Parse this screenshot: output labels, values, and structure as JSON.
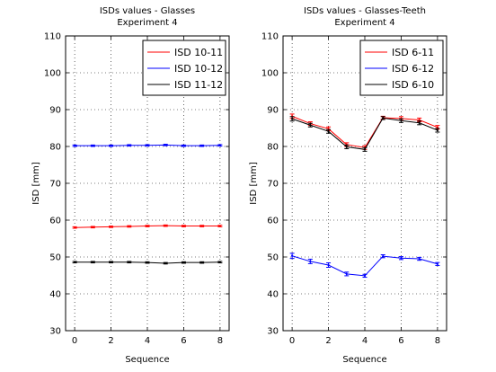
{
  "figure": {
    "background": "#ffffff"
  },
  "chart_data": [
    {
      "type": "line",
      "title": [
        "ISDs values - Glasses",
        "Experiment 4"
      ],
      "xlabel": "Sequence",
      "ylabel": "ISD [mm]",
      "xlim": [
        -0.5,
        8.5
      ],
      "ylim": [
        30,
        110
      ],
      "xticks": [
        0,
        2,
        4,
        6,
        8
      ],
      "yticks": [
        30,
        40,
        50,
        60,
        70,
        80,
        90,
        100,
        110
      ],
      "grid": true,
      "legend_position": "top-right",
      "x": [
        0,
        1,
        2,
        3,
        4,
        5,
        6,
        7,
        8
      ],
      "series": [
        {
          "name": "ISD 10-11",
          "color": "#ff0000",
          "values": [
            58.0,
            58.1,
            58.2,
            58.3,
            58.4,
            58.5,
            58.4,
            58.4,
            58.4
          ],
          "err": [
            0.2,
            0.2,
            0.2,
            0.2,
            0.2,
            0.2,
            0.2,
            0.2,
            0.2
          ]
        },
        {
          "name": "ISD 10-12",
          "color": "#0000ff",
          "values": [
            80.2,
            80.2,
            80.2,
            80.3,
            80.3,
            80.4,
            80.2,
            80.2,
            80.3
          ],
          "err": [
            0.2,
            0.2,
            0.2,
            0.2,
            0.2,
            0.2,
            0.2,
            0.2,
            0.2
          ]
        },
        {
          "name": "ISD 11-12",
          "color": "#000000",
          "values": [
            48.6,
            48.6,
            48.6,
            48.6,
            48.5,
            48.3,
            48.5,
            48.5,
            48.6
          ],
          "err": [
            0.2,
            0.2,
            0.2,
            0.2,
            0.2,
            0.2,
            0.2,
            0.2,
            0.2
          ]
        }
      ]
    },
    {
      "type": "line",
      "title": [
        "ISDs values - Glasses-Teeth",
        "Experiment 4"
      ],
      "xlabel": "Sequence",
      "ylabel": "ISD [mm]",
      "xlim": [
        -0.5,
        8.5
      ],
      "ylim": [
        30,
        110
      ],
      "xticks": [
        0,
        2,
        4,
        6,
        8
      ],
      "yticks": [
        30,
        40,
        50,
        60,
        70,
        80,
        90,
        100,
        110
      ],
      "grid": true,
      "legend_position": "top-right",
      "x": [
        0,
        1,
        2,
        3,
        4,
        5,
        6,
        7,
        8
      ],
      "series": [
        {
          "name": "ISD 6-11",
          "color": "#ff0000",
          "values": [
            88.2,
            86.2,
            84.8,
            80.5,
            79.7,
            87.8,
            87.6,
            87.2,
            85.2
          ],
          "err": [
            0.6,
            0.5,
            0.5,
            0.5,
            0.5,
            0.4,
            0.5,
            0.5,
            0.5
          ]
        },
        {
          "name": "ISD 6-12",
          "color": "#0000ff",
          "values": [
            50.3,
            48.8,
            47.8,
            45.4,
            44.9,
            50.2,
            49.7,
            49.5,
            48.1
          ],
          "err": [
            0.7,
            0.6,
            0.6,
            0.5,
            0.4,
            0.4,
            0.4,
            0.4,
            0.4
          ]
        },
        {
          "name": "ISD 6-10",
          "color": "#000000",
          "values": [
            87.5,
            85.8,
            84.1,
            79.9,
            79.2,
            87.7,
            87.0,
            86.4,
            84.4
          ],
          "err": [
            0.6,
            0.5,
            0.5,
            0.5,
            0.5,
            0.4,
            0.5,
            0.5,
            0.5
          ]
        }
      ]
    }
  ]
}
